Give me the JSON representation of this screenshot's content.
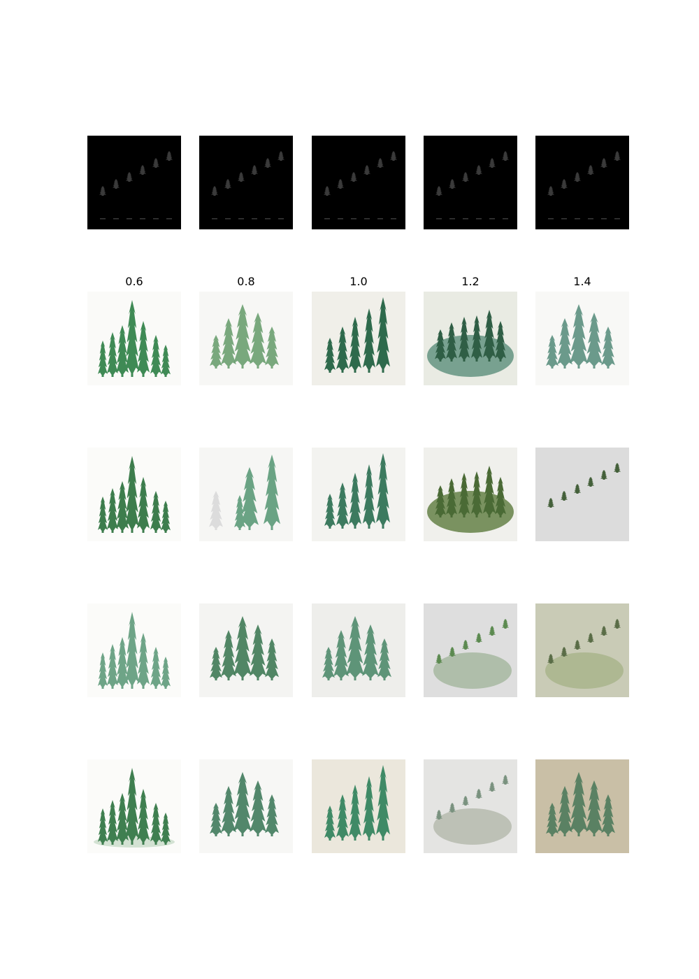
{
  "figure": {
    "column_labels": [
      "0.6",
      "0.8",
      "1.0",
      "1.2",
      "1.4"
    ],
    "rows": [
      {
        "kind": "control",
        "cells": [
          {
            "bg": "#000000",
            "tree": "#3a3a3a",
            "style": "diagonal"
          },
          {
            "bg": "#000000",
            "tree": "#3a3a3a",
            "style": "diagonal"
          },
          {
            "bg": "#000000",
            "tree": "#3a3a3a",
            "style": "diagonal"
          },
          {
            "bg": "#000000",
            "tree": "#3a3a3a",
            "style": "diagonal"
          },
          {
            "bg": "#000000",
            "tree": "#3a3a3a",
            "style": "diagonal"
          }
        ]
      },
      {
        "kind": "sample",
        "cells": [
          {
            "bg": "#fafaf8",
            "tree": "#3f8a55",
            "style": "grove"
          },
          {
            "bg": "#f7f7f5",
            "tree": "#6a9e70",
            "style": "cluster"
          },
          {
            "bg": "#f0efe9",
            "tree": "#2e6a4c",
            "style": "row"
          },
          {
            "bg": "#e9ebe3",
            "tree": "#2f5e45",
            "style": "blob",
            "wash": "#5b8f7a"
          },
          {
            "bg": "#f8f8f6",
            "tree": "#5b8f7f",
            "style": "cluster"
          }
        ]
      },
      {
        "kind": "sample",
        "cells": [
          {
            "bg": "#fbfbf9",
            "tree": "#3d7d4d",
            "style": "grove"
          },
          {
            "bg": "#f6f6f4",
            "tree": "#6aa384",
            "style": "sparse"
          },
          {
            "bg": "#f3f3f0",
            "tree": "#3c7a5f",
            "style": "row"
          },
          {
            "bg": "#f0f0ec",
            "tree": "#4a6a35",
            "style": "blob",
            "wash": "#5c7a3d"
          },
          {
            "bg": "#dcdcdc",
            "tree": "#44603a",
            "style": "diagonal"
          }
        ]
      },
      {
        "kind": "sample",
        "cells": [
          {
            "bg": "#fbfbf9",
            "tree": "#6ea487",
            "style": "grove"
          },
          {
            "bg": "#f4f4f2",
            "tree": "#3f7a55",
            "style": "cluster"
          },
          {
            "bg": "#eeeeeb",
            "tree": "#4e8a6c",
            "style": "cluster"
          },
          {
            "bg": "#dedede",
            "tree": "#5c8a50",
            "style": "diagonal",
            "wash": "#a3b59c"
          },
          {
            "bg": "#c9cbb6",
            "tree": "#5a6d47",
            "style": "diagonal",
            "wash": "#a8b38a"
          }
        ]
      },
      {
        "kind": "sample",
        "cells": [
          {
            "bg": "#fbfbf9",
            "tree": "#3f7f50",
            "style": "grove",
            "wash": "#c9dcc9"
          },
          {
            "bg": "#f7f7f5",
            "tree": "#3f7a5c",
            "style": "cluster"
          },
          {
            "bg": "#ebe7dc",
            "tree": "#3f8a66",
            "style": "row"
          },
          {
            "bg": "#e4e4e2",
            "tree": "#7a927f",
            "style": "diagonal",
            "wash": "#b3b8ab"
          },
          {
            "bg": "#c9bfa6",
            "tree": "#4e7a5c",
            "style": "cluster"
          }
        ]
      }
    ]
  }
}
